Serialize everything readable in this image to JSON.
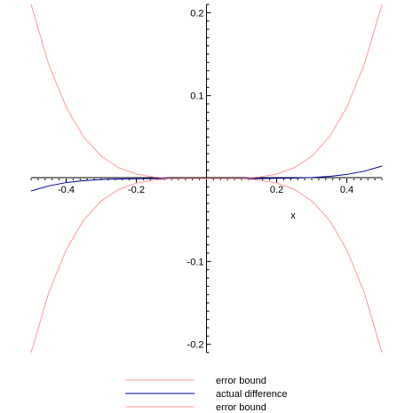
{
  "chart_data": {
    "type": "line",
    "title": "",
    "xlabel": "x",
    "ylabel": "",
    "xlim": [
      -0.5,
      0.5
    ],
    "ylim": [
      -0.21,
      0.21
    ],
    "grid": false,
    "legend_position": "bottom",
    "x_ticks": [
      {
        "value": -0.4,
        "label": "-0.4"
      },
      {
        "value": -0.2,
        "label": "-0.2"
      },
      {
        "value": 0.2,
        "label": "0.2"
      },
      {
        "value": 0.4,
        "label": "0.4"
      }
    ],
    "y_ticks": [
      {
        "value": 0.2,
        "label": "0.2"
      },
      {
        "value": 0.1,
        "label": "0.1"
      },
      {
        "value": -0.1,
        "label": "-0.1"
      },
      {
        "value": -0.2,
        "label": "-0.2"
      }
    ],
    "x": [
      -0.5,
      -0.45,
      -0.4,
      -0.35,
      -0.3,
      -0.25,
      -0.2,
      -0.15,
      -0.1,
      -0.05,
      0,
      0.05,
      0.1,
      0.15,
      0.2,
      0.25,
      0.3,
      0.35,
      0.4,
      0.45,
      0.5
    ],
    "series": [
      {
        "name": "error bound",
        "color": "#ff9999",
        "values": [
          0.21,
          0.138,
          0.086,
          0.05,
          0.027,
          0.013,
          0.0054,
          0.0017,
          0.0003,
          2e-05,
          0,
          2e-05,
          0.0003,
          0.0017,
          0.0054,
          0.013,
          0.027,
          0.05,
          0.086,
          0.138,
          0.21
        ]
      },
      {
        "name": "actual difference",
        "color": "#000099",
        "values": [
          -0.015,
          -0.0089,
          -0.0049,
          -0.0025,
          -0.0012,
          -0.0005,
          -0.0002,
          -5e-05,
          -1e-05,
          0,
          0,
          0,
          1e-05,
          5e-05,
          0.0002,
          0.0005,
          0.0012,
          0.0025,
          0.0049,
          0.0089,
          0.015
        ]
      },
      {
        "name": "error bound",
        "color": "#ff9999",
        "values": [
          -0.21,
          -0.138,
          -0.086,
          -0.05,
          -0.027,
          -0.013,
          -0.0054,
          -0.0017,
          -0.0003,
          -2e-05,
          0,
          -2e-05,
          -0.0003,
          -0.0017,
          -0.0054,
          -0.013,
          -0.027,
          -0.05,
          -0.086,
          -0.138,
          -0.21
        ]
      }
    ]
  }
}
